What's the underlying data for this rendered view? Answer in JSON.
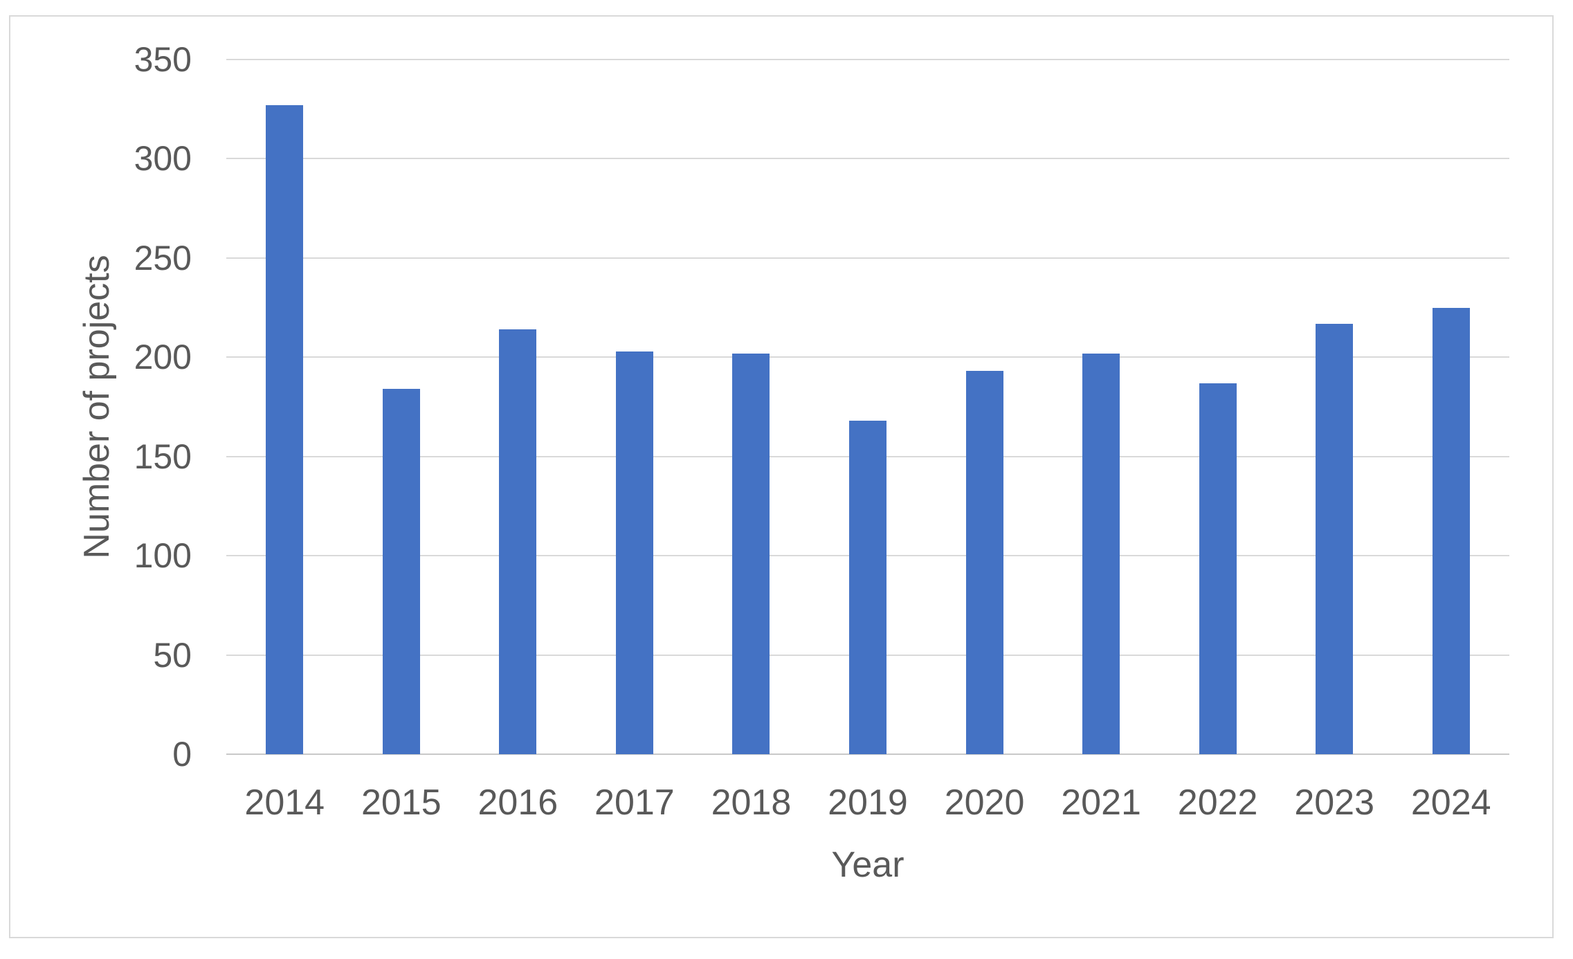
{
  "chart_data": {
    "type": "bar",
    "categories": [
      "2014",
      "2015",
      "2016",
      "2017",
      "2018",
      "2019",
      "2020",
      "2021",
      "2022",
      "2023",
      "2024"
    ],
    "values": [
      327,
      184,
      214,
      203,
      202,
      168,
      193,
      202,
      187,
      217,
      225
    ],
    "title": "",
    "xlabel": "Year",
    "ylabel": "Number of projects",
    "ylim": [
      0,
      350
    ],
    "yticks": [
      0,
      50,
      100,
      150,
      200,
      250,
      300,
      350
    ],
    "grid": true,
    "legend": false,
    "bar_color": "#4472C4",
    "gridline_color": "#D9D9D9",
    "axis_line_color": "#C8C8C8",
    "label_color": "#595959",
    "frame_border_color": "#D9D9D9"
  }
}
